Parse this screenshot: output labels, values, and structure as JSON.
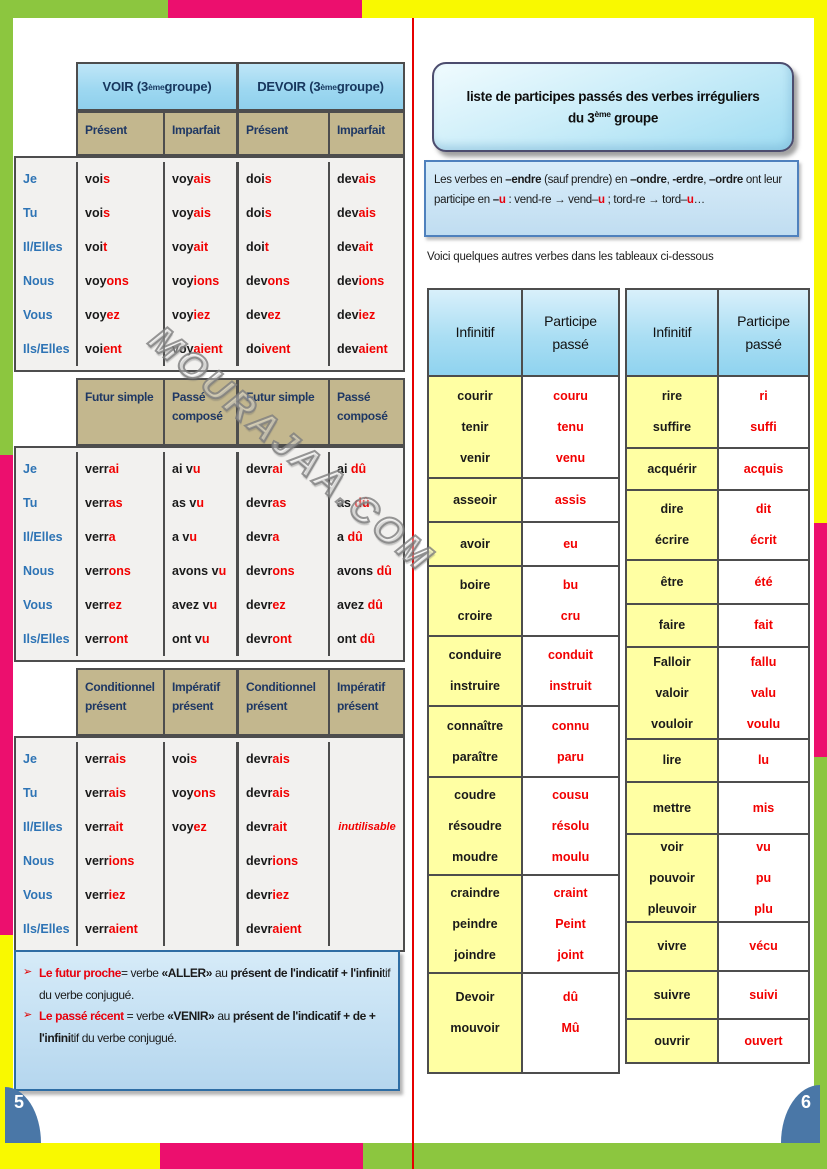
{
  "colors": {
    "accent_red": "#f20000",
    "pronoun_blue": "#2e74b5",
    "tense_header_tan": "#c3b78e",
    "infinitive_yellow": "#ffffa3",
    "border_green": "#8cc63f",
    "border_magenta": "#ec0f6e",
    "border_yellow": "#f9f900",
    "badge_blue": "#4a77a7"
  },
  "watermark": "MOURAJAA.COM",
  "page_left": {
    "page_number": "5",
    "conjugation": {
      "verb_headers": [
        {
          "pre": "VOIR (3",
          "sup": "ème",
          "post": " groupe)"
        },
        {
          "pre": "DEVOIR (3",
          "sup": "ème",
          "post": " groupe)"
        }
      ],
      "pronouns": [
        "Je",
        "Tu",
        "Il/Elles",
        "Nous",
        "Vous",
        "Ils/Elles"
      ],
      "sections": [
        {
          "headers": [
            "Présent",
            "Imparfait",
            "Présent",
            "Imparfait"
          ],
          "rows": [
            [
              [
                "voi",
                "s"
              ],
              [
                "voy",
                "ais"
              ],
              [
                "doi",
                "s"
              ],
              [
                "dev",
                "ais"
              ]
            ],
            [
              [
                "voi",
                "s"
              ],
              [
                "voy",
                "ais"
              ],
              [
                "doi",
                "s"
              ],
              [
                "dev",
                "ais"
              ]
            ],
            [
              [
                "voi",
                "t"
              ],
              [
                "voy",
                "ait"
              ],
              [
                "doi",
                "t"
              ],
              [
                "dev",
                "ait"
              ]
            ],
            [
              [
                "voy",
                "ons"
              ],
              [
                "voy",
                "ions"
              ],
              [
                "dev",
                "ons"
              ],
              [
                "dev",
                "ions"
              ]
            ],
            [
              [
                "voy",
                "ez"
              ],
              [
                "voy",
                "iez"
              ],
              [
                "dev",
                "ez"
              ],
              [
                "dev",
                "iez"
              ]
            ],
            [
              [
                "voi",
                "ent"
              ],
              [
                "voy",
                "aient"
              ],
              [
                "do",
                "ivent"
              ],
              [
                "dev",
                "aient"
              ]
            ]
          ]
        },
        {
          "headers": [
            "Futur simple",
            "Passé composé",
            "Futur simple",
            "Passé composé"
          ],
          "rows": [
            [
              [
                "verr",
                "ai"
              ],
              [
                "ai v",
                "u"
              ],
              [
                "devr",
                "ai"
              ],
              [
                "ai  ",
                "dû"
              ]
            ],
            [
              [
                "verr",
                "as"
              ],
              [
                "as v",
                "u"
              ],
              [
                "devr",
                "as"
              ],
              [
                "as  ",
                "dû"
              ]
            ],
            [
              [
                "verr",
                "a"
              ],
              [
                "a v",
                "u"
              ],
              [
                "devr",
                "a"
              ],
              [
                "a  ",
                "dû"
              ]
            ],
            [
              [
                "verr",
                "ons"
              ],
              [
                "avons v",
                "u"
              ],
              [
                "devr",
                "ons"
              ],
              [
                "avons  ",
                "dû"
              ]
            ],
            [
              [
                "verr",
                "ez"
              ],
              [
                "avez v",
                "u"
              ],
              [
                "devr",
                "ez"
              ],
              [
                "avez  ",
                "dû"
              ]
            ],
            [
              [
                "verr",
                "ont"
              ],
              [
                "ont v",
                "u"
              ],
              [
                "devr",
                "ont"
              ],
              [
                "ont  ",
                "dû"
              ]
            ]
          ]
        },
        {
          "headers": [
            "Conditionnel présent",
            "Impératif présent",
            "Conditionnel présent",
            "Impératif présent"
          ],
          "rows": [
            [
              [
                "verr",
                "ais"
              ],
              [
                "voi",
                "s"
              ],
              [
                "devr",
                "ais"
              ],
              null
            ],
            [
              [
                "verr",
                "ais"
              ],
              [
                "voy",
                "ons"
              ],
              [
                "devr",
                "ais"
              ],
              null
            ],
            [
              [
                "verr",
                "ait"
              ],
              [
                "voy",
                "ez"
              ],
              [
                "devr",
                "ait"
              ],
              [
                "",
                "inutilisable",
                "italic"
              ]
            ],
            [
              [
                "verr",
                "ions"
              ],
              null,
              [
                "devr",
                "ions"
              ],
              null
            ],
            [
              [
                "verr",
                "iez"
              ],
              null,
              [
                "devr",
                "iez"
              ],
              null
            ],
            [
              [
                "verr",
                "aient"
              ],
              null,
              [
                "devr",
                "aient"
              ],
              null
            ]
          ]
        }
      ]
    },
    "bullet_glyph": "➢",
    "notes": [
      {
        "segments": [
          {
            "t": "Le futur proche",
            "bold": true,
            "red": true
          },
          {
            "t": "=  verbe  "
          },
          {
            "t": "«ALLER»",
            "bold": true
          },
          {
            "t": "  au "
          },
          {
            "t": "présent de l'indicatif  +",
            "bold": true
          },
          {
            "t": " "
          },
          {
            "t": "l'infini",
            "bold": true
          },
          {
            "t": "tif du verbe conjugué."
          }
        ]
      },
      {
        "segments": [
          {
            "t": "Le passé récent ",
            "bold": true,
            "red": true
          },
          {
            "t": "=  verbe  "
          },
          {
            "t": "«VENIR»",
            "bold": true
          },
          {
            "t": "  au "
          },
          {
            "t": "présent de l'indicatif + de +",
            "bold": true
          },
          {
            "t": " "
          },
          {
            "t": "l'infini",
            "bold": true
          },
          {
            "t": "tif du verbe conjugué."
          }
        ]
      }
    ]
  },
  "page_right": {
    "page_number": "6",
    "title": {
      "line1": "liste de participes passés des verbes irréguliers",
      "line2": {
        "pre": "du 3",
        "sup": "ème",
        "post": " groupe"
      }
    },
    "rule_note_segments": [
      {
        "t": "Les verbes en "
      },
      {
        "t": "–endre ",
        "bold": true
      },
      {
        "t": "(sauf prendre) en "
      },
      {
        "t": "–ondre",
        "bold": true
      },
      {
        "t": ", "
      },
      {
        "t": "-erdre",
        "bold": true
      },
      {
        "t": ", "
      },
      {
        "t": "–ordre",
        "bold": true
      },
      {
        "t": " ont leur participe en "
      },
      {
        "t": "–",
        "bold": true
      },
      {
        "t": "u",
        "bold": true,
        "red": true
      },
      {
        "t": " : vend-re → vend–"
      },
      {
        "t": "u",
        "bold": true,
        "red": true
      },
      {
        "t": " ; tord-re → tord–"
      },
      {
        "t": "u",
        "bold": true,
        "red": true
      },
      {
        "t": "…"
      }
    ],
    "intro_line": "Voici quelques  autres  verbes dans les tableaux  ci-dessous",
    "tables": [
      {
        "headers": [
          "Infinitif",
          "Participe passé"
        ],
        "groups": [
          {
            "inf": [
              "courir",
              "tenir",
              "venir"
            ],
            "pp": [
              "couru",
              "tenu",
              "venu"
            ]
          },
          {
            "inf": [
              "asseoir"
            ],
            "pp": [
              "assis"
            ]
          },
          {
            "inf": [
              "avoir"
            ],
            "pp": [
              "eu"
            ]
          },
          {
            "inf": [
              "boire",
              "croire"
            ],
            "pp": [
              "bu",
              "cru"
            ]
          },
          {
            "inf": [
              "conduire",
              "instruire"
            ],
            "pp": [
              "conduit",
              "instruit"
            ]
          },
          {
            "inf": [
              "connaître",
              "paraître"
            ],
            "pp": [
              "connu",
              "paru"
            ]
          },
          {
            "inf": [
              "coudre",
              "résoudre",
              "moudre"
            ],
            "pp": [
              "cousu",
              "résolu",
              "moulu"
            ]
          },
          {
            "inf": [
              "craindre",
              "peindre",
              "joindre"
            ],
            "pp": [
              "craint",
              "Peint",
              "joint"
            ]
          },
          {
            "inf": [
              "Devoir",
              "mouvoir"
            ],
            "pp": [
              "dû",
              "Mû"
            ]
          }
        ]
      },
      {
        "headers": [
          "Infinitif",
          "Participe passé"
        ],
        "groups": [
          {
            "inf": [
              "rire",
              "suffire"
            ],
            "pp": [
              "ri",
              "suffi"
            ]
          },
          {
            "inf": [
              "acquérir"
            ],
            "pp": [
              "acquis"
            ]
          },
          {
            "inf": [
              "dire",
              "écrire"
            ],
            "pp": [
              "dit",
              "écrit"
            ]
          },
          {
            "inf": [
              "être"
            ],
            "pp": [
              "été"
            ]
          },
          {
            "inf": [
              "faire"
            ],
            "pp": [
              "fait"
            ]
          },
          {
            "inf": [
              "Falloir",
              "valoir",
              "vouloir"
            ],
            "pp": [
              "fallu",
              "valu",
              "voulu"
            ]
          },
          {
            "inf": [
              "lire"
            ],
            "pp": [
              "lu"
            ]
          },
          {
            "inf": [
              "mettre"
            ],
            "pp": [
              "mis"
            ]
          },
          {
            "inf": [
              "voir",
              "pouvoir",
              "pleuvoir"
            ],
            "pp": [
              "vu",
              "pu",
              "plu"
            ]
          },
          {
            "inf": [
              "vivre"
            ],
            "pp": [
              "vécu"
            ]
          },
          {
            "inf": [
              "suivre"
            ],
            "pp": [
              "suivi"
            ]
          },
          {
            "inf": [
              "ouvrir"
            ],
            "pp": [
              "ouvert"
            ]
          }
        ]
      }
    ]
  }
}
